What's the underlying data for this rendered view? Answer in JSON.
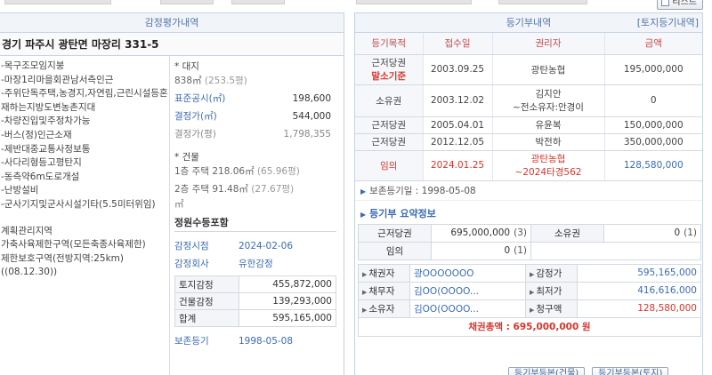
{
  "toolbar": {
    "listen_label": "리스트"
  },
  "left": {
    "title": "감정평가내역",
    "address": "경기 파주시 광탄면 마장리 331-5",
    "notes": [
      "-목구조모임지붕",
      "-마장1리마을회관남서측인근",
      "-주위단독주택,농경지,자연림,근린시설등혼재하는지방도변농촌지대",
      "-차량진입및주정차가능",
      "-버스(정)인근소재",
      "-제반대중교통사정보통",
      "-사다리형등고평탄지",
      "-동측약6m도로개설",
      "-난방설비",
      "-군사기지및군사시설기타(5.5미터위임)"
    ],
    "notes2": [
      "계획관리지역",
      "가축사육제한구역(모든축종사육제한)",
      "제한보호구역(전방지역:25km)((08.12.30))"
    ],
    "land": {
      "label": "* 대지",
      "area": "838㎡",
      "pyeong": "(253.5평)",
      "rows": [
        {
          "k": "표준공시(㎡)",
          "v": "198,600"
        },
        {
          "k": "결정가(㎡)",
          "v": "544,000"
        },
        {
          "k": "결정가(평)",
          "v": "1,798,355"
        }
      ]
    },
    "building": {
      "label": "* 건물",
      "floors": [
        {
          "text": "1층 주택 218.06㎡",
          "pyeong": "(65.96평)"
        },
        {
          "text": "2층 주택 91.48㎡",
          "pyeong": "(27.67평)"
        }
      ],
      "unit": "㎡"
    },
    "appraisal": {
      "title": "정원수등포함",
      "date_k": "감정시점",
      "date_v": "2024-02-06",
      "company_k": "감정회사",
      "company_v": "유한감정",
      "table": [
        {
          "k": "토지감정",
          "v": "455,872,000"
        },
        {
          "k": "건물감정",
          "v": "139,293,000"
        },
        {
          "k": "합계",
          "v": "595,165,000"
        }
      ],
      "preserve_k": "보존등기",
      "preserve_v": "1998-05-08"
    }
  },
  "right": {
    "title": "등기부내역",
    "link": "[토지등기내역]",
    "columns": [
      "등기목적",
      "접수일",
      "권리자",
      "금액"
    ],
    "rows": [
      {
        "purpose": "근저당권",
        "purpose2": "말소기준",
        "date": "2003.09.25",
        "holder": "광탄농협",
        "holder2": "",
        "amount": "195,000,000"
      },
      {
        "purpose": "소유권",
        "purpose2": "",
        "date": "2003.12.02",
        "holder": "김지안",
        "holder2": "~전소유자:안경이",
        "amount": "0"
      },
      {
        "purpose": "근저당권",
        "purpose2": "",
        "date": "2005.04.01",
        "holder": "유윤복",
        "holder2": "",
        "amount": "150,000,000"
      },
      {
        "purpose": "근저당권",
        "purpose2": "",
        "date": "2012.12.05",
        "holder": "박전하",
        "holder2": "",
        "amount": "350,000,000"
      },
      {
        "purpose": "임의",
        "purpose2": "",
        "date": "2024.01.25",
        "holder": "광탄농협",
        "holder2": "~2024타경562",
        "amount": "128,580,000"
      }
    ],
    "preserve_note": "보존등기일 : 1998-05-08",
    "summary_title": "등기부 요약정보",
    "summary": {
      "mortgage_k": "근저당권",
      "mortgage_v": "695,000,000",
      "mortgage_cnt": "(3)",
      "owner_k": "소유권",
      "owner_v": "0",
      "owner_cnt": "(1)",
      "arb_k": "임의",
      "arb_v": "0",
      "arb_cnt": "(1)"
    },
    "parties": [
      {
        "k1": "채권자",
        "n1": "광OOOOOOO",
        "k2": "감정가",
        "v2": "595,165,000",
        "color": "#3b6bb5"
      },
      {
        "k1": "채무자",
        "n1": "김OO(OOOO...",
        "k2": "최저가",
        "v2": "416,616,000",
        "color": "#3b6bb5"
      },
      {
        "k1": "소유자",
        "n1": "김OO(OOOO...",
        "k2": "청구액",
        "v2": "128,580,000",
        "color": "#d9342b"
      }
    ],
    "total": "채권총액 : 695,000,000 원",
    "buttons": [
      "등기부등본(건물)",
      "등기부등본(토지)"
    ]
  }
}
